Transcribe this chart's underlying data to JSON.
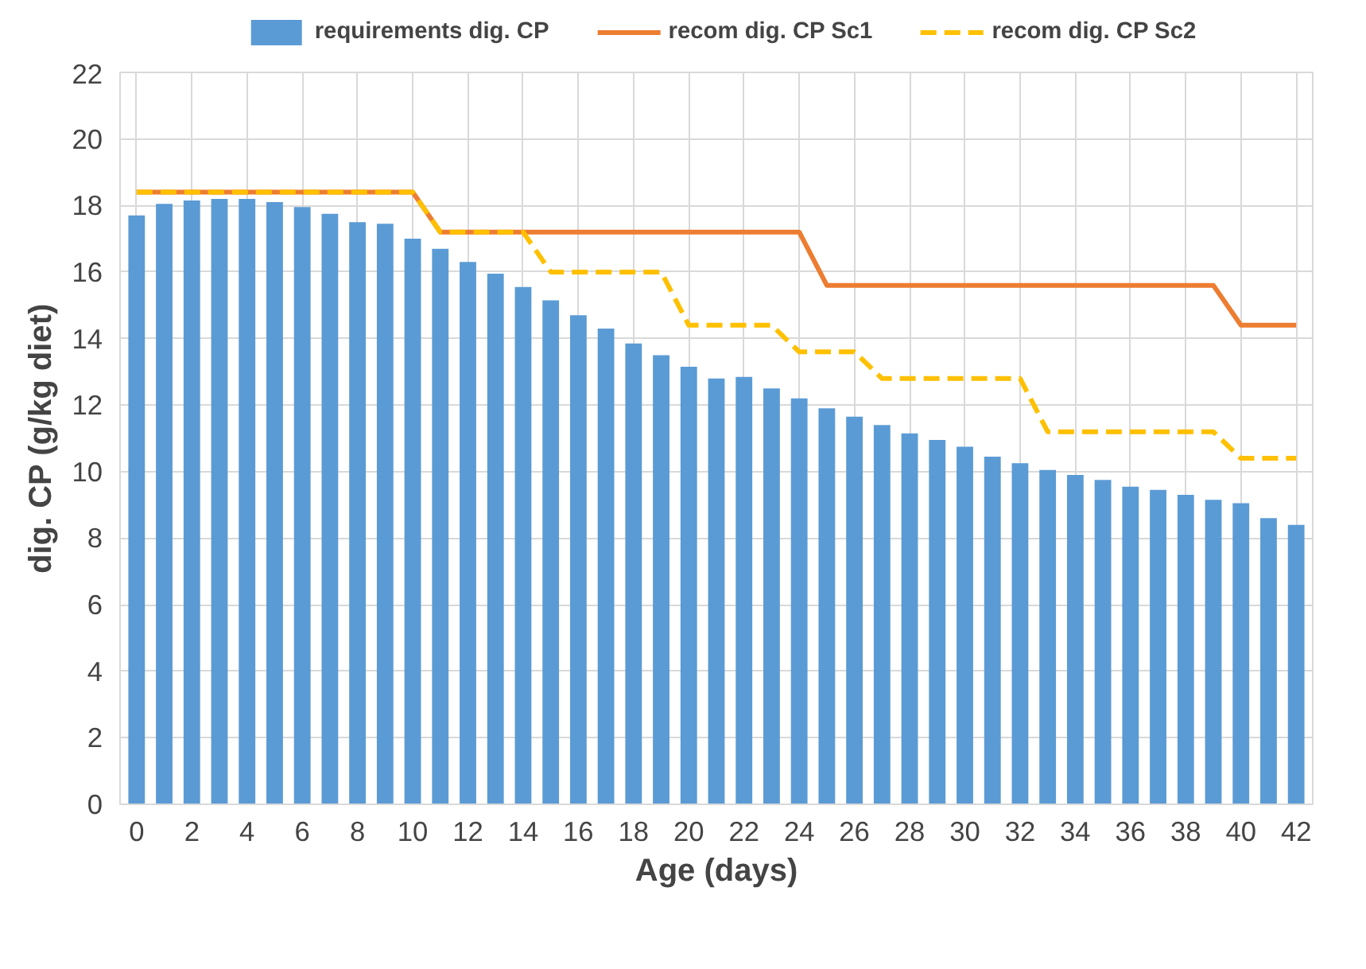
{
  "chart_data": {
    "type": "bar",
    "xlabel": "Age (days)",
    "ylabel": "dig. CP (g/kg diet)",
    "x": [
      0,
      1,
      2,
      3,
      4,
      5,
      6,
      7,
      8,
      9,
      10,
      11,
      12,
      13,
      14,
      15,
      16,
      17,
      18,
      19,
      20,
      21,
      22,
      23,
      24,
      25,
      26,
      27,
      28,
      29,
      30,
      31,
      32,
      33,
      34,
      35,
      36,
      37,
      38,
      39,
      40,
      41,
      42
    ],
    "series": [
      {
        "name": "requirements dig. CP",
        "color": "#5b9bd5",
        "values": [
          17.7,
          18.05,
          18.15,
          18.2,
          18.2,
          18.1,
          17.95,
          17.75,
          17.5,
          17.45,
          17.0,
          16.7,
          16.3,
          15.95,
          15.55,
          15.15,
          14.7,
          14.3,
          13.85,
          13.5,
          13.15,
          12.8,
          12.85,
          12.5,
          12.2,
          11.9,
          11.65,
          11.4,
          11.15,
          10.95,
          10.75,
          10.45,
          10.25,
          10.05,
          9.9,
          9.75,
          9.55,
          9.45,
          9.3,
          9.15,
          9.05,
          8.6,
          8.4
        ]
      },
      {
        "name": "recom dig. CP Sc1",
        "type": "line",
        "color": "#ed7d31",
        "line_style": "solid",
        "values": [
          18.4,
          18.4,
          18.4,
          18.4,
          18.4,
          18.4,
          18.4,
          18.4,
          18.4,
          18.4,
          18.4,
          17.2,
          17.2,
          17.2,
          17.2,
          17.2,
          17.2,
          17.2,
          17.2,
          17.2,
          17.2,
          17.2,
          17.2,
          17.2,
          17.2,
          15.6,
          15.6,
          15.6,
          15.6,
          15.6,
          15.6,
          15.6,
          15.6,
          15.6,
          15.6,
          15.6,
          15.6,
          15.6,
          15.6,
          15.6,
          14.4,
          14.4,
          14.4
        ]
      },
      {
        "name": "recom dig. CP Sc2",
        "type": "line",
        "color": "#ffc000",
        "line_style": "dashed",
        "values": [
          18.4,
          18.4,
          18.4,
          18.4,
          18.4,
          18.4,
          18.4,
          18.4,
          18.4,
          18.4,
          18.4,
          17.2,
          17.2,
          17.2,
          17.2,
          16.0,
          16.0,
          16.0,
          16.0,
          16.0,
          14.4,
          14.4,
          14.4,
          14.4,
          13.6,
          13.6,
          13.6,
          12.8,
          12.8,
          12.8,
          12.8,
          12.8,
          12.8,
          11.2,
          11.2,
          11.2,
          11.2,
          11.2,
          11.2,
          11.2,
          10.4,
          10.4,
          10.4
        ]
      }
    ],
    "xlim": [
      -0.6,
      42.6
    ],
    "xticks": [
      0,
      2,
      4,
      6,
      8,
      10,
      12,
      14,
      16,
      18,
      20,
      22,
      24,
      26,
      28,
      30,
      32,
      34,
      36,
      38,
      40,
      42
    ],
    "ylim": [
      0,
      22
    ],
    "yticks": [
      0,
      2,
      4,
      6,
      8,
      10,
      12,
      14,
      16,
      18,
      20,
      22
    ],
    "grid": true,
    "legend": "top"
  }
}
